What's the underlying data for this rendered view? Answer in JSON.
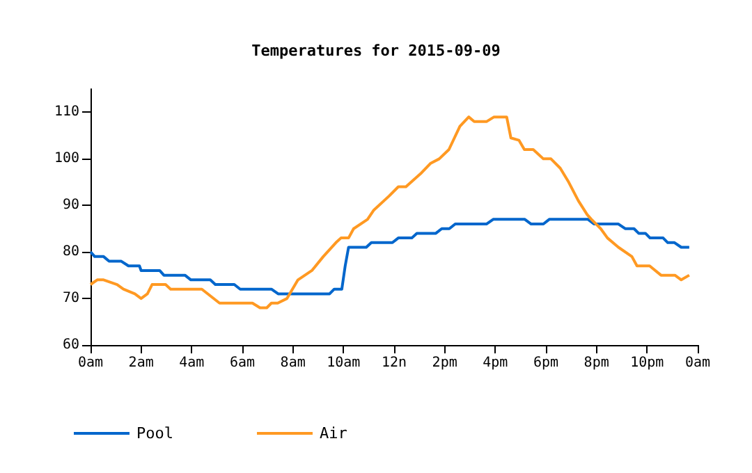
{
  "chart_data": {
    "type": "line",
    "title": "Temperatures for 2015-09-09",
    "xlim": [
      "2015-09-09T00:00",
      "2015-09-10T00:00"
    ],
    "ylim": [
      60,
      115
    ],
    "yticks": [
      60,
      70,
      80,
      90,
      100,
      110
    ],
    "xticks": [
      {
        "value": "2015-09-09T00:00",
        "label": "0am"
      },
      {
        "value": "2015-09-09T02:00",
        "label": "2am"
      },
      {
        "value": "2015-09-09T04:00",
        "label": "4am"
      },
      {
        "value": "2015-09-09T06:00",
        "label": "6am"
      },
      {
        "value": "2015-09-09T08:00",
        "label": "8am"
      },
      {
        "value": "2015-09-09T10:00",
        "label": "10am"
      },
      {
        "value": "2015-09-09T12:00",
        "label": "12n"
      },
      {
        "value": "2015-09-09T14:00",
        "label": "2pm"
      },
      {
        "value": "2015-09-09T16:00",
        "label": "4pm"
      },
      {
        "value": "2015-09-09T18:00",
        "label": "6pm"
      },
      {
        "value": "2015-09-09T20:00",
        "label": "8pm"
      },
      {
        "value": "2015-09-09T22:00",
        "label": "10pm"
      },
      {
        "value": "2015-09-10T00:00",
        "label": "0am"
      }
    ],
    "grid": false,
    "legend": "bottom left",
    "marker": "none",
    "line_style": "solid",
    "series": [
      {
        "name": "Pool",
        "color": "#0066cc",
        "x": [
          "2015-09-09T00:00",
          "2015-09-09T00:10",
          "2015-09-09T00:31",
          "2015-09-09T00:44",
          "2015-09-09T01:13",
          "2015-09-09T01:30",
          "2015-09-09T01:56",
          "2015-09-09T02:00",
          "2015-09-09T02:44",
          "2015-09-09T02:54",
          "2015-09-09T03:44",
          "2015-09-09T03:58",
          "2015-09-09T04:44",
          "2015-09-09T04:56",
          "2015-09-09T05:41",
          "2015-09-09T05:55",
          "2015-09-09T07:09",
          "2015-09-09T07:25",
          "2015-09-09T09:27",
          "2015-09-09T09:38",
          "2015-09-09T09:56",
          "2015-09-09T10:04",
          "2015-09-09T10:12",
          "2015-09-09T10:54",
          "2015-09-09T11:06",
          "2015-09-09T11:56",
          "2015-09-09T12:10",
          "2015-09-09T12:42",
          "2015-09-09T12:54",
          "2015-09-09T13:39",
          "2015-09-09T13:53",
          "2015-09-09T14:11",
          "2015-09-09T14:25",
          "2015-09-09T15:39",
          "2015-09-09T15:55",
          "2015-09-09T17:10",
          "2015-09-09T17:25",
          "2015-09-09T17:54",
          "2015-09-09T18:08",
          "2015-09-09T19:40",
          "2015-09-09T19:54",
          "2015-09-09T20:52",
          "2015-09-09T21:08",
          "2015-09-09T21:29",
          "2015-09-09T21:40",
          "2015-09-09T21:56",
          "2015-09-09T22:07",
          "2015-09-09T22:38",
          "2015-09-09T22:49",
          "2015-09-09T23:05",
          "2015-09-09T23:21",
          "2015-09-09T23:40"
        ],
        "values": [
          80,
          79,
          79,
          78,
          78,
          77,
          77,
          76,
          76,
          75,
          75,
          74,
          74,
          73,
          73,
          72,
          72,
          71,
          71,
          72,
          72,
          77,
          81,
          81,
          82,
          82,
          83,
          83,
          84,
          84,
          85,
          85,
          86,
          86,
          87,
          87,
          86,
          86,
          87,
          87,
          86,
          86,
          85,
          85,
          84,
          84,
          83,
          83,
          82,
          82,
          81,
          81
        ]
      },
      {
        "name": "Air",
        "color": "#ff9922",
        "x": [
          "2015-09-09T00:00",
          "2015-09-09T00:16",
          "2015-09-09T00:31",
          "2015-09-09T01:03",
          "2015-09-09T01:18",
          "2015-09-09T01:45",
          "2015-09-09T02:00",
          "2015-09-09T02:15",
          "2015-09-09T02:26",
          "2015-09-09T02:58",
          "2015-09-09T03:10",
          "2015-09-09T04:24",
          "2015-09-09T05:06",
          "2015-09-09T06:24",
          "2015-09-09T06:42",
          "2015-09-09T06:58",
          "2015-09-09T07:09",
          "2015-09-09T07:24",
          "2015-09-09T07:46",
          "2015-09-09T08:12",
          "2015-09-09T08:45",
          "2015-09-09T09:12",
          "2015-09-09T09:42",
          "2015-09-09T09:54",
          "2015-09-09T10:12",
          "2015-09-09T10:24",
          "2015-09-09T10:57",
          "2015-09-09T11:12",
          "2015-09-09T11:48",
          "2015-09-09T12:10",
          "2015-09-09T12:28",
          "2015-09-09T13:05",
          "2015-09-09T13:26",
          "2015-09-09T13:47",
          "2015-09-09T14:10",
          "2015-09-09T14:36",
          "2015-09-09T14:57",
          "2015-09-09T15:10",
          "2015-09-09T15:39",
          "2015-09-09T15:57",
          "2015-09-09T16:27",
          "2015-09-09T16:37",
          "2015-09-09T16:56",
          "2015-09-09T17:09",
          "2015-09-09T17:30",
          "2015-09-09T17:54",
          "2015-09-09T18:12",
          "2015-09-09T18:34",
          "2015-09-09T18:54",
          "2015-09-09T19:17",
          "2015-09-09T19:38",
          "2015-09-09T19:48",
          "2015-09-09T20:10",
          "2015-09-09T20:26",
          "2015-09-09T20:52",
          "2015-09-09T21:24",
          "2015-09-09T21:36",
          "2015-09-09T22:06",
          "2015-09-09T22:33",
          "2015-09-09T23:06",
          "2015-09-09T23:21",
          "2015-09-09T23:40"
        ],
        "values": [
          73,
          74,
          74,
          73,
          72,
          71,
          70,
          71,
          73,
          73,
          72,
          72,
          69,
          69,
          68,
          68,
          69,
          69,
          70,
          74,
          76,
          79,
          82,
          83,
          83,
          85,
          87,
          89,
          92,
          94,
          94,
          97,
          99,
          100,
          102,
          107,
          109,
          108,
          108,
          109,
          109,
          104.5,
          104,
          102,
          102,
          100,
          100,
          98,
          95,
          91,
          88,
          87,
          85,
          83,
          81,
          79,
          77,
          77,
          75,
          75,
          74,
          75
        ]
      }
    ]
  }
}
